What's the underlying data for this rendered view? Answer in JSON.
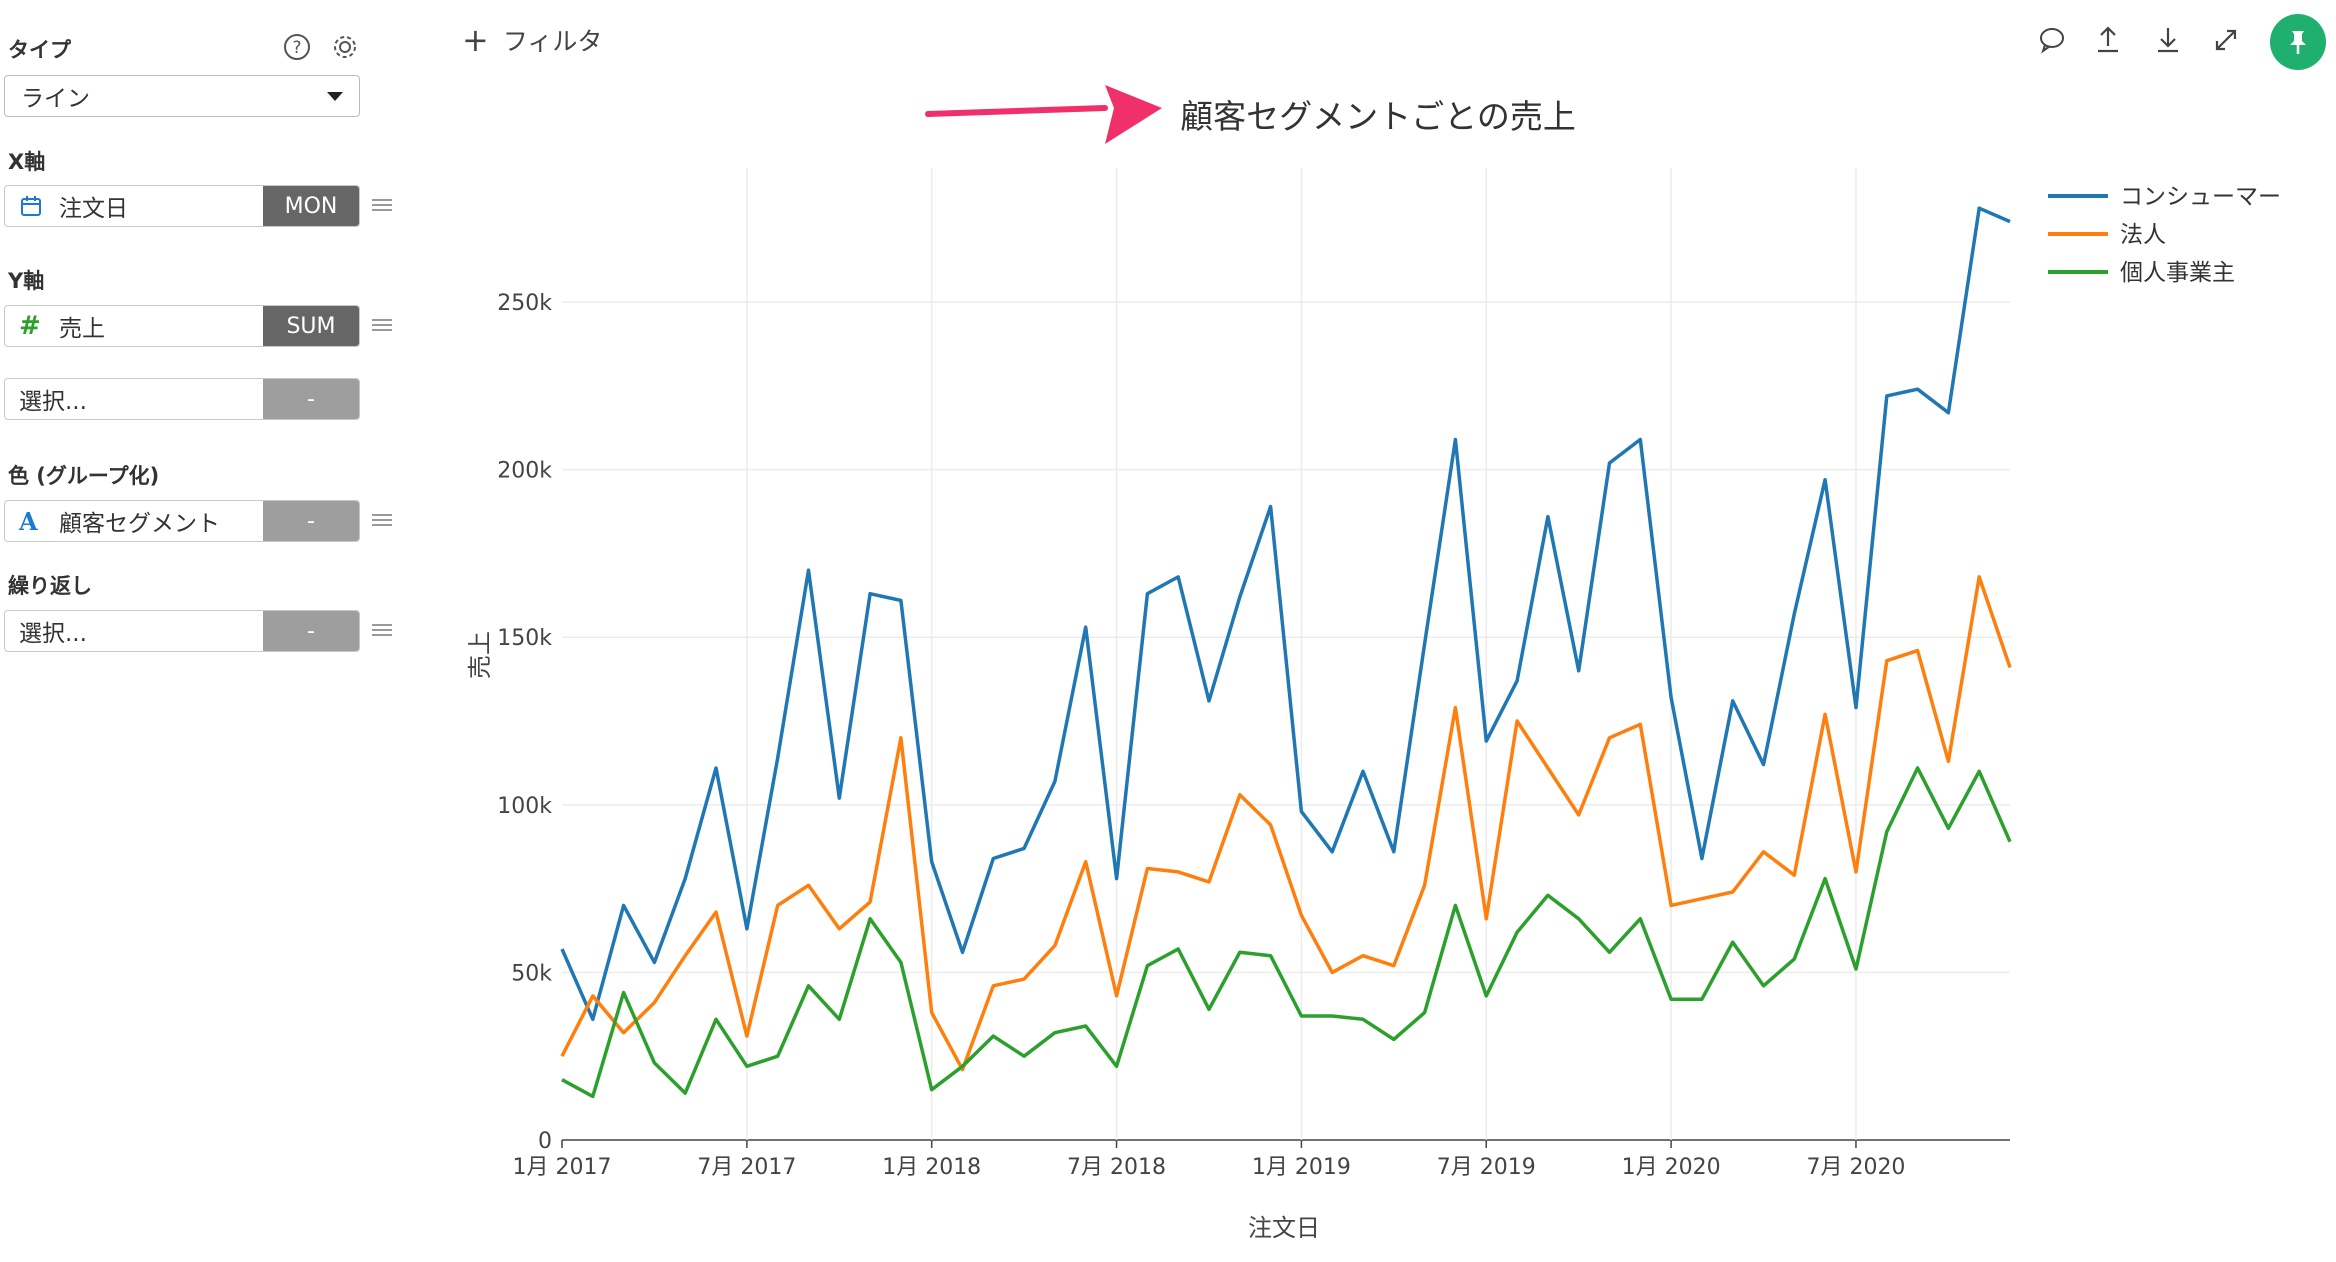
{
  "sidebar": {
    "type_label": "タイプ",
    "type_value": "ライン",
    "x_axis_label": "X軸",
    "x_field": "注文日",
    "x_agg": "MON",
    "y_axis_label": "Y軸",
    "y_field": "売上",
    "y_agg": "SUM",
    "y2_placeholder": "選択...",
    "y2_agg": "-",
    "color_label": "色 (グループ化)",
    "color_field": "顧客セグメント",
    "color_agg": "-",
    "repeat_label": "繰り返し",
    "repeat_placeholder": "選択...",
    "repeat_agg": "-"
  },
  "toolbar": {
    "filter_plus": "+",
    "filter_label": "フィルタ",
    "accent_color": "#1fb070"
  },
  "chart_data": {
    "type": "line",
    "title": "顧客セグメントごとの売上",
    "xlabel": "注文日",
    "ylabel": "売上",
    "ylim": [
      0,
      290000
    ],
    "x_start": "2017-01",
    "x_ticks": [
      "1月 2017",
      "7月 2017",
      "1月 2018",
      "7月 2018",
      "1月 2019",
      "7月 2019",
      "1月 2020",
      "7月 2020"
    ],
    "y_ticks": [
      "0",
      "50k",
      "100k",
      "150k",
      "200k",
      "250k"
    ],
    "y_tick_values": [
      0,
      50000,
      100000,
      150000,
      200000,
      250000
    ],
    "legend_position": "top-right",
    "grid": true,
    "series": [
      {
        "name": "コンシューマー",
        "color": "#1f77b4",
        "values": [
          57000,
          36000,
          70000,
          53000,
          78000,
          111000,
          63000,
          114000,
          170000,
          102000,
          163000,
          161000,
          83000,
          56000,
          84000,
          87000,
          107000,
          153000,
          78000,
          163000,
          168000,
          131000,
          162000,
          189000,
          98000,
          86000,
          110000,
          86000,
          148000,
          209000,
          119000,
          137000,
          186000,
          140000,
          202000,
          209000,
          132000,
          84000,
          131000,
          112000,
          157000,
          197000,
          129000,
          222000,
          224000,
          217000,
          278000,
          274000
        ]
      },
      {
        "name": "法人",
        "color": "#ff7f0e",
        "values": [
          25000,
          43000,
          32000,
          41000,
          55000,
          68000,
          31000,
          70000,
          76000,
          63000,
          71000,
          120000,
          38000,
          21000,
          46000,
          48000,
          58000,
          83000,
          43000,
          81000,
          80000,
          77000,
          103000,
          94000,
          67000,
          50000,
          55000,
          52000,
          76000,
          129000,
          66000,
          125000,
          111000,
          97000,
          120000,
          124000,
          70000,
          72000,
          74000,
          86000,
          79000,
          127000,
          80000,
          143000,
          146000,
          113000,
          168000,
          141000
        ]
      },
      {
        "name": "個人事業主",
        "color": "#2ca02c",
        "values": [
          18000,
          13000,
          44000,
          23000,
          14000,
          36000,
          22000,
          25000,
          46000,
          36000,
          66000,
          53000,
          15000,
          22000,
          31000,
          25000,
          32000,
          34000,
          22000,
          52000,
          57000,
          39000,
          56000,
          55000,
          37000,
          37000,
          36000,
          30000,
          38000,
          70000,
          43000,
          62000,
          73000,
          66000,
          56000,
          66000,
          42000,
          42000,
          59000,
          46000,
          54000,
          78000,
          51000,
          92000,
          111000,
          93000,
          110000,
          89000
        ]
      }
    ]
  }
}
